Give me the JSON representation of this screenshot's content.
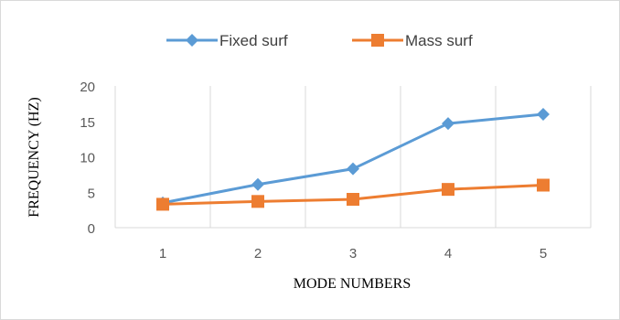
{
  "chart_data": {
    "type": "line",
    "title": "",
    "xlabel": "MODE NUMBERS",
    "ylabel": "FREQUENCY (HZ)",
    "categories": [
      "1",
      "2",
      "3",
      "4",
      "5"
    ],
    "ylim": [
      0,
      20
    ],
    "yticks": [
      "0",
      "5",
      "10",
      "15",
      "20"
    ],
    "grid": "vertical",
    "legend": "top",
    "series": [
      {
        "name": "Fixed surf",
        "values": [
          3.5,
          6.1,
          8.3,
          14.7,
          16.0
        ],
        "color": "#5b9bd5",
        "marker": "diamond"
      },
      {
        "name": "Mass surf",
        "values": [
          3.3,
          3.7,
          4.0,
          5.4,
          6.0
        ],
        "color": "#ed7d31",
        "marker": "square"
      }
    ]
  }
}
